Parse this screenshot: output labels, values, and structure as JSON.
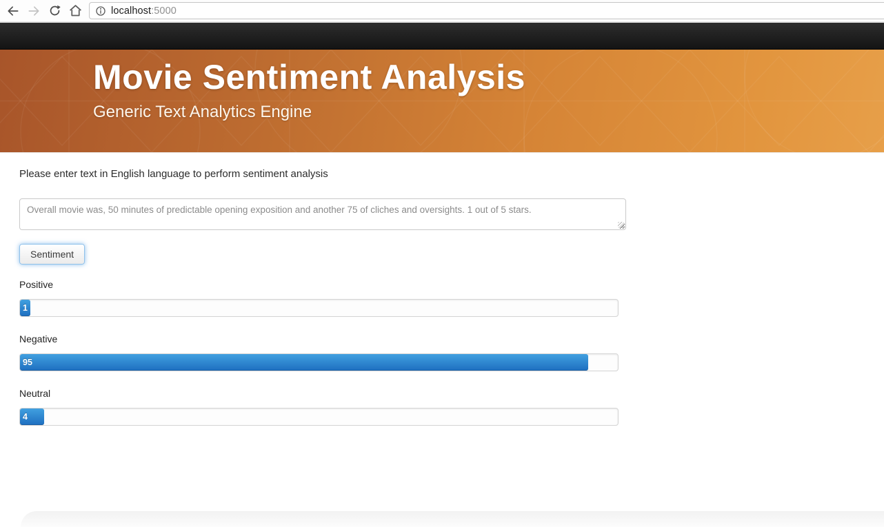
{
  "browser": {
    "url_host": "localhost",
    "url_port": ":5000",
    "icons": {
      "back": "back-arrow",
      "forward": "forward-arrow",
      "reload": "reload-circular-arrow",
      "home": "house-outline",
      "site_info": "info-circle"
    }
  },
  "navbar": {
    "color": "#1c1c1c",
    "items": []
  },
  "header": {
    "title": "Movie Sentiment Analysis",
    "subtitle": "Generic Text Analytics Engine",
    "gradient_left": "#a8552a",
    "gradient_right": "#e79f49"
  },
  "main": {
    "instruction": "Please enter text in English language to perform sentiment analysis",
    "textarea": {
      "value": "Overall movie was, 50 minutes of predictable opening exposition and another 75 of cliches and oversights. 1 out of 5 stars."
    },
    "button_label": "Sentiment",
    "results": [
      {
        "label": "Positive",
        "value": "1",
        "percent": 1
      },
      {
        "label": "Negative",
        "value": "95",
        "percent": 95
      },
      {
        "label": "Neutral",
        "value": "4",
        "percent": 4
      }
    ]
  },
  "colors": {
    "progress_fill_top": "#41a0e0",
    "progress_fill_bottom": "#1e6fc0",
    "accent_blue": "#428bca"
  }
}
